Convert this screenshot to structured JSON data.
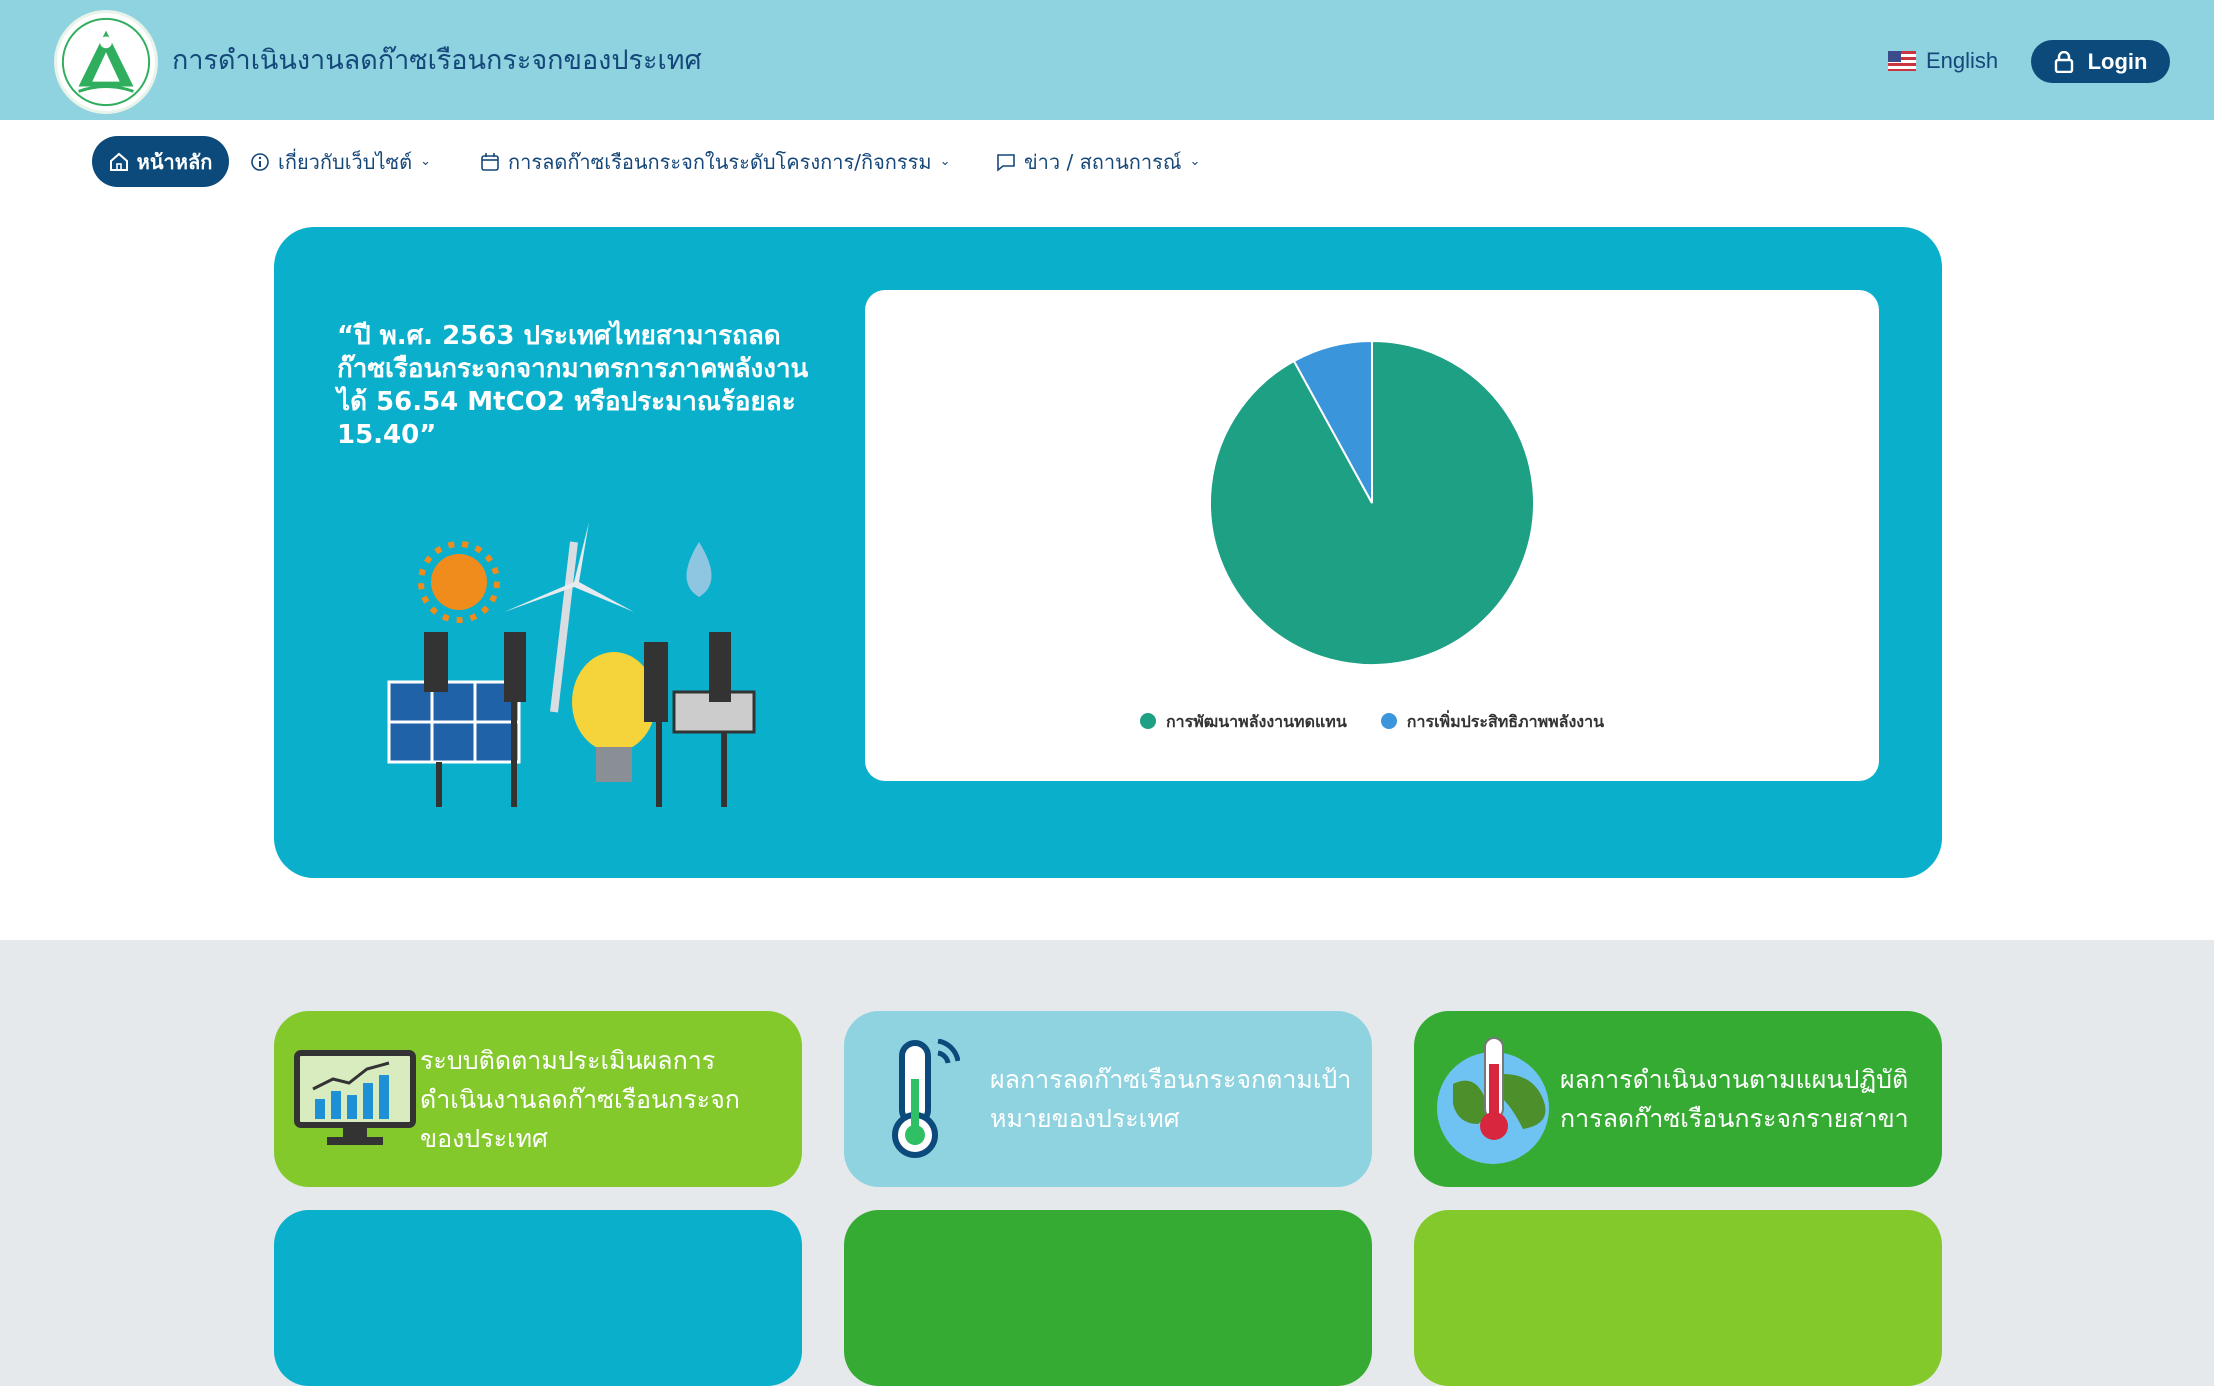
{
  "header": {
    "title": "การดำเนินงานลดก๊าซเรือนกระจกของประเทศ",
    "language": "English",
    "login": "Login"
  },
  "nav": [
    {
      "label": "หน้าหลัก",
      "icon": "home-icon"
    },
    {
      "label": "เกี่ยวกับเว็บไซต์",
      "icon": "info-icon"
    },
    {
      "label": "การลดก๊าซเรือนกระจกในระดับโครงการ/กิจกรรม",
      "icon": "calendar-icon"
    },
    {
      "label": "ข่าว / สถานการณ์",
      "icon": "chat-icon"
    }
  ],
  "hero": {
    "quote": "“ปี พ.ศ. 2563 ประเทศไทยสามารถลดก๊าซเรือนกระจกจากมาตรการภาคพลังงานได้ 56.54 MtCO2 หรือประมาณร้อยละ 15.40”"
  },
  "chart_data": {
    "type": "pie",
    "legend_position": "bottom",
    "series": [
      {
        "name": "การพัฒนาพลังงานทดแทน",
        "value": 92,
        "color": "#1ea085"
      },
      {
        "name": "การเพิ่มประสิทธิภาพพลังงาน",
        "value": 8,
        "color": "#3b95db"
      }
    ]
  },
  "cards": [
    {
      "label": "ระบบติดตามประเมินผลการดำเนินงานลดก๊าซเรือนกระจกของประเทศ",
      "icon": "monitor-chart-icon",
      "color": "#84c92c"
    },
    {
      "label": "ผลการลดก๊าซเรือนกระจกตามเป้าหมายของประเทศ",
      "icon": "thermometer-icon",
      "color": "#8ed3df"
    },
    {
      "label": "ผลการดำเนินงานตามแผนปฏิบัติการลดก๊าซเรือนกระจกรายสาขา",
      "icon": "globe-thermometer-icon",
      "color": "#36ab33"
    },
    {
      "label": "",
      "color": "#0aafcb"
    },
    {
      "label": "",
      "color": "#36ab33"
    },
    {
      "label": "",
      "color": "#84c92c"
    }
  ]
}
